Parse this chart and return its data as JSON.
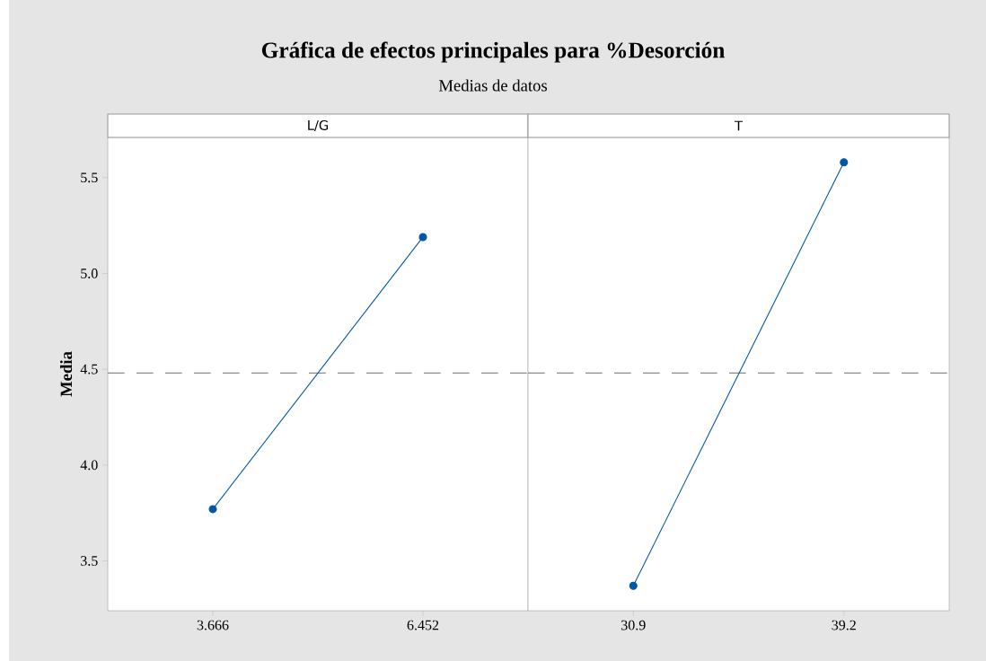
{
  "chart_data": [
    {
      "type": "line",
      "title": "Gráfica de efectos principales para %Desorción",
      "subtitle": "Medias de datos",
      "xlabel": "L/G",
      "ylabel": "Media",
      "categories": [
        "3.666",
        "6.452"
      ],
      "series": [
        {
          "color": "#0055a5",
          "values": [
            3.77,
            5.19
          ]
        }
      ],
      "ylim": [
        3.24,
        5.71
      ],
      "yticks": [
        {
          "value": 3.5,
          "label": "3.5"
        },
        {
          "value": 4.0,
          "label": "4.0"
        },
        {
          "value": 4.5,
          "label": "4.5"
        },
        {
          "value": 5.0,
          "label": "5.0"
        },
        {
          "value": 5.5,
          "label": "5.5"
        }
      ],
      "ref_lines": [
        {
          "axis": "y",
          "value": 4.48,
          "color": "#8c8c8c",
          "line_style": "dashed"
        }
      ],
      "marker": "circle",
      "line_style": "solid"
    },
    {
      "type": "line",
      "xlabel": "T",
      "categories": [
        "30.9",
        "39.2"
      ],
      "series": [
        {
          "color": "#0055a5",
          "values": [
            3.37,
            5.58
          ]
        }
      ],
      "ylim": [
        3.24,
        5.71
      ],
      "ref_lines": [
        {
          "axis": "y",
          "value": 4.48,
          "color": "#8c8c8c",
          "line_style": "dashed"
        }
      ],
      "marker": "circle",
      "line_style": "solid",
      "tick_labels": "x"
    }
  ]
}
